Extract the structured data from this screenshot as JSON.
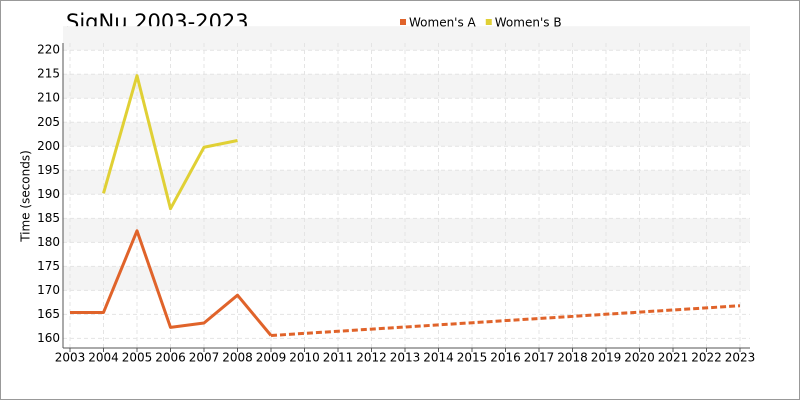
{
  "chart_data": {
    "type": "line",
    "title": "SigNu 2003-2023",
    "y_label": "Time (seconds)",
    "categories": [
      "2003",
      "2004",
      "2005",
      "2006",
      "2007",
      "2008",
      "2009",
      "2010",
      "2011",
      "2012",
      "2013",
      "2014",
      "2015",
      "2016",
      "2017",
      "2018",
      "2019",
      "2020",
      "2021",
      "2022",
      "2023"
    ],
    "series": [
      {
        "name": "Women's A",
        "color": "#e0632a",
        "values": [
          165.4,
          165.4,
          182.4,
          162.3,
          163.2,
          169.0,
          160.6,
          null,
          null,
          null,
          null,
          null,
          null,
          null,
          null,
          null,
          null,
          null,
          null,
          null,
          166.8
        ]
      },
      {
        "name": "Women's B",
        "color": "#e0d035",
        "values": [
          null,
          190.2,
          214.7,
          187.0,
          199.8,
          201.2,
          null,
          null,
          null,
          null,
          null,
          null,
          null,
          null,
          null,
          null,
          null,
          null,
          null,
          null,
          null
        ]
      }
    ],
    "ylim": [
      158,
      221.5
    ],
    "yticks": [
      160,
      165,
      170,
      175,
      180,
      185,
      190,
      195,
      200,
      205,
      210,
      215,
      220
    ],
    "grid": true,
    "gaps": "dashed",
    "legend": "top"
  }
}
